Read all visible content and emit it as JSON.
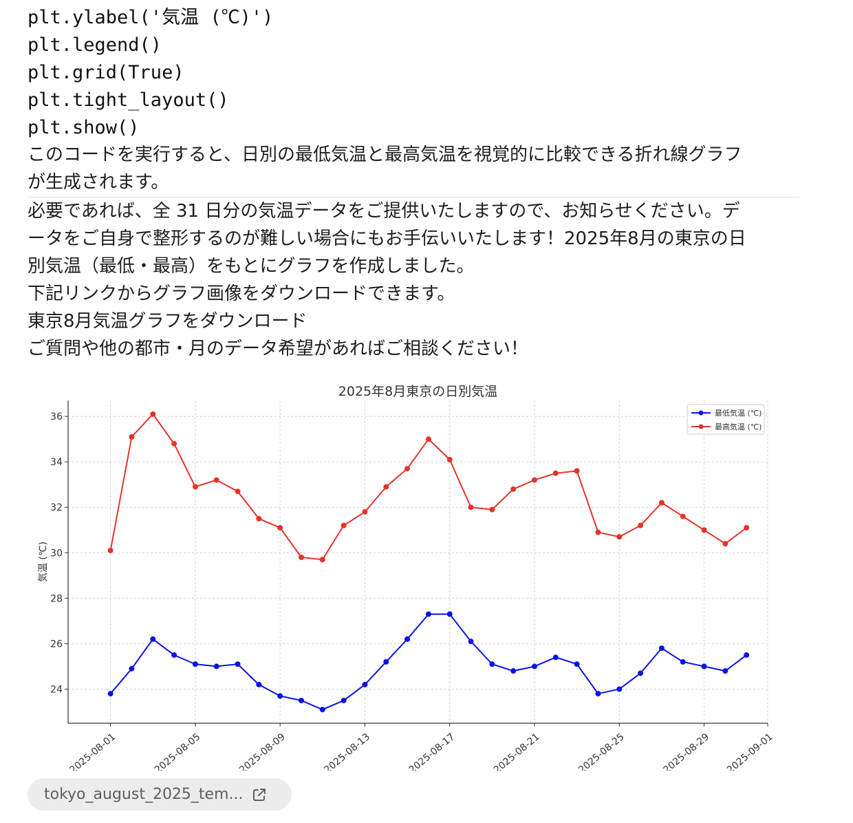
{
  "code_lines": [
    "plt.ylabel('気温 (℃)')",
    "plt.legend()",
    "plt.grid(True)",
    "plt.tight_layout()",
    "plt.show()"
  ],
  "explanation_lines": [
    "このコードを実行すると、日別の最低気温と最高気温を視覚的に比較できる折れ線グラフ",
    "が生成されます。"
  ],
  "response_lines": [
    "必要であれば、全 31 日分の気温データをご提供いたしますので、お知らせください。デ",
    "ータをご自身で整形するのが難しい場合にもお手伝いいたします！2025年8月の東京の日",
    "別気温（最低・最高）をもとにグラフを作成しました。",
    "下記リンクからグラフ画像をダウンロードできます。",
    "東京8月気温グラフをダウンロード",
    "ご質問や他の都市・月のデータ希望があればご相談ください！"
  ],
  "attachment": {
    "filename": "tokyo_august_2025_tem...",
    "icon": "external-link-icon"
  },
  "chart_data": {
    "type": "line",
    "title": "2025年8月東京の日別気温",
    "ylabel": "気温 (℃)",
    "xlabel": "",
    "ylim": [
      22.5,
      36.7
    ],
    "yticks": [
      24,
      26,
      28,
      30,
      32,
      34,
      36
    ],
    "x_start": "2025-08-01",
    "x_ticks": [
      "2025-08-01",
      "2025-08-05",
      "2025-08-09",
      "2025-08-13",
      "2025-08-17",
      "2025-08-21",
      "2025-08-25",
      "2025-08-29",
      "2025-09-01"
    ],
    "x_tick_labels": [
      "2025-08-01",
      "2025-08-05",
      "2025-08-09",
      "2025-08-13",
      "2025-08-17",
      "2025-08-21",
      "2025-08-25",
      "2025-08-29",
      "2025-09-01"
    ],
    "x_range": [
      "2025-07-30",
      "2025-09-01"
    ],
    "grid": true,
    "legend_position": "top-right",
    "series": [
      {
        "name": "最低気温 (℃)",
        "color": "#0a13e6",
        "values": [
          23.8,
          24.9,
          26.2,
          25.5,
          25.1,
          25.0,
          25.1,
          24.2,
          23.7,
          23.5,
          23.1,
          23.5,
          24.2,
          25.2,
          26.2,
          27.3,
          27.3,
          26.1,
          25.1,
          24.8,
          25.0,
          25.4,
          25.1,
          23.8,
          24.0,
          24.7,
          25.8,
          25.2,
          25.0,
          24.8,
          25.5
        ]
      },
      {
        "name": "最高気温 (℃)",
        "color": "#e5332a",
        "values": [
          30.1,
          35.1,
          36.1,
          34.8,
          32.9,
          33.2,
          32.7,
          31.5,
          31.1,
          29.8,
          29.7,
          31.2,
          31.8,
          32.9,
          33.7,
          35.0,
          34.1,
          32.0,
          31.9,
          32.8,
          33.2,
          33.5,
          33.6,
          30.9,
          30.7,
          31.2,
          32.2,
          31.6,
          31.0,
          30.4,
          31.1
        ]
      }
    ]
  }
}
